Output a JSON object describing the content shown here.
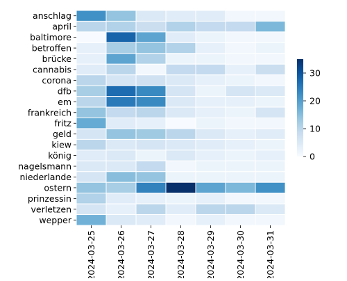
{
  "chart_data": {
    "type": "heatmap",
    "title": "",
    "xlabel": "",
    "ylabel": "",
    "x": [
      "2024-03-25",
      "2024-03-26",
      "2024-03-27",
      "2024-03-28",
      "2024-03-29",
      "2024-03-30",
      "2024-03-31"
    ],
    "y": [
      "anschlag",
      "april",
      "baltimore",
      "betroffen",
      "brücke",
      "cannabis",
      "corona",
      "dfb",
      "em",
      "frankreich",
      "fritz",
      "geld",
      "kiew",
      "könig",
      "nagelsmann",
      "niederlande",
      "ostern",
      "prinzessin",
      "verletzen",
      "wepper"
    ],
    "values": [
      [
        22,
        14,
        5,
        4,
        4,
        1,
        1
      ],
      [
        10,
        11,
        8,
        11,
        9,
        9,
        16
      ],
      [
        0,
        28,
        19,
        4,
        2,
        1,
        1
      ],
      [
        3,
        12,
        14,
        11,
        3,
        1,
        2
      ],
      [
        3,
        19,
        11,
        2,
        2,
        1,
        1
      ],
      [
        4,
        10,
        1,
        9,
        9,
        3,
        8
      ],
      [
        10,
        6,
        7,
        5,
        3,
        2,
        1
      ],
      [
        12,
        27,
        23,
        6,
        2,
        6,
        5
      ],
      [
        10,
        25,
        23,
        5,
        3,
        3,
        2
      ],
      [
        14,
        9,
        10,
        5,
        3,
        2,
        6
      ],
      [
        18,
        4,
        3,
        0,
        2,
        1,
        1
      ],
      [
        6,
        14,
        13,
        10,
        5,
        3,
        4
      ],
      [
        10,
        5,
        6,
        5,
        4,
        3,
        2
      ],
      [
        4,
        5,
        2,
        5,
        3,
        2,
        3
      ],
      [
        5,
        5,
        9,
        1,
        2,
        2,
        2
      ],
      [
        6,
        15,
        14,
        2,
        2,
        2,
        2
      ],
      [
        14,
        12,
        24,
        35,
        19,
        16,
        22
      ],
      [
        11,
        4,
        3,
        2,
        3,
        1,
        1
      ],
      [
        6,
        3,
        10,
        4,
        10,
        10,
        5
      ],
      [
        17,
        5,
        4,
        1,
        3,
        1,
        1
      ]
    ],
    "colorscale": "Blues",
    "zlim": [
      0,
      35
    ],
    "colorbar_ticks": [
      0,
      10,
      20,
      30
    ],
    "grid": false,
    "legend": "colorbar-right"
  }
}
